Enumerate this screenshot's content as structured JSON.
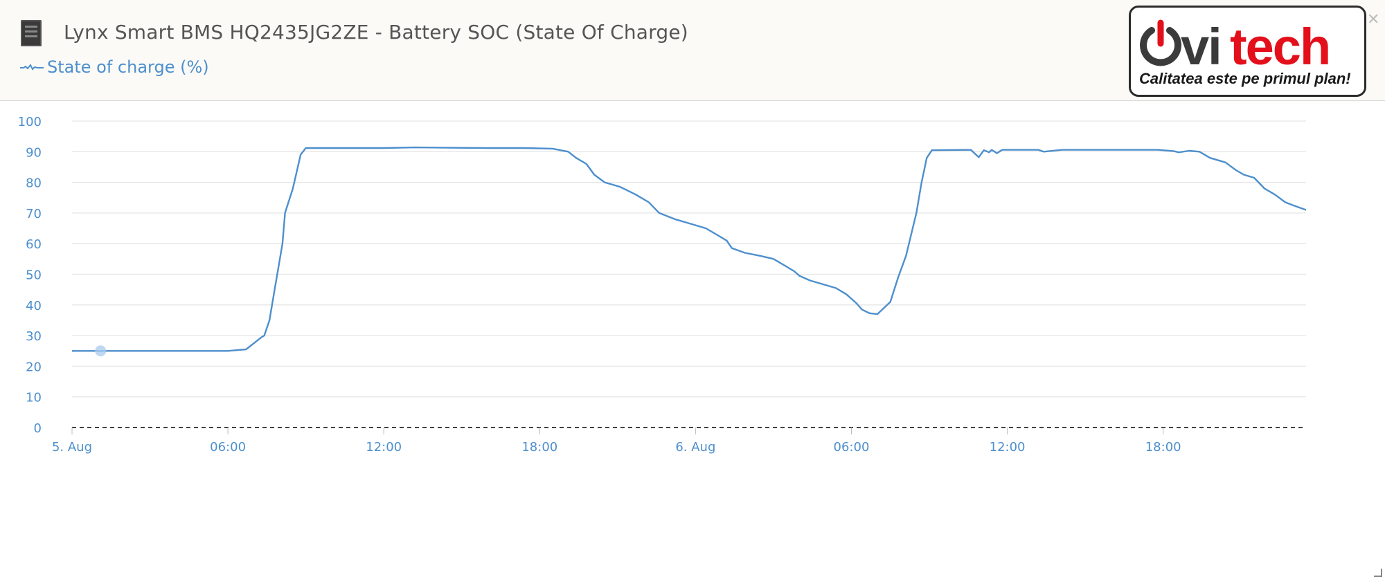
{
  "header": {
    "title": "Lynx Smart BMS HQ2435JG2ZE - Battery SOC (State Of Charge)",
    "device_icon": "battery-device-icon",
    "legend_label": "State of charge (%)",
    "legend_icon": "line-series-icon"
  },
  "logo": {
    "brand_dark": "ovi",
    "brand_red": "tech",
    "tagline": "Calitatea este pe primul plan!"
  },
  "colors": {
    "series": "#4d8fcd",
    "axis_text": "#4d8fcd",
    "grid": "#e6e6e6",
    "brand_red": "#e3101b",
    "brand_dark": "#3b3b3b"
  },
  "chart_data": {
    "type": "line",
    "title": "",
    "xlabel": "",
    "ylabel": "",
    "ylim": [
      0,
      100
    ],
    "yticks": [
      0,
      10,
      20,
      30,
      40,
      50,
      60,
      70,
      80,
      90,
      100
    ],
    "xlim": [
      "2024-08-05 00:00",
      "2024-08-06 23:30"
    ],
    "xticks": [
      {
        "t": "2024-08-05 00:00",
        "label": "5. Aug"
      },
      {
        "t": "2024-08-05 06:00",
        "label": "06:00"
      },
      {
        "t": "2024-08-05 12:00",
        "label": "12:00"
      },
      {
        "t": "2024-08-05 18:00",
        "label": "18:00"
      },
      {
        "t": "2024-08-06 00:00",
        "label": "6. Aug"
      },
      {
        "t": "2024-08-06 06:00",
        "label": "06:00"
      },
      {
        "t": "2024-08-06 12:00",
        "label": "12:00"
      },
      {
        "t": "2024-08-06 18:00",
        "label": "18:00"
      }
    ],
    "grid": true,
    "marker": {
      "t": "2024-08-05 01:06",
      "y": 25
    },
    "series": [
      {
        "name": "State of charge (%)",
        "points": [
          [
            "2024-08-05 00:00",
            25
          ],
          [
            "2024-08-05 06:00",
            25
          ],
          [
            "2024-08-05 06:42",
            25.5
          ],
          [
            "2024-08-05 07:18",
            29.5
          ],
          [
            "2024-08-05 07:24",
            30
          ],
          [
            "2024-08-05 07:36",
            35
          ],
          [
            "2024-08-05 07:48",
            45
          ],
          [
            "2024-08-05 08:06",
            60
          ],
          [
            "2024-08-05 08:12",
            70
          ],
          [
            "2024-08-05 08:30",
            78
          ],
          [
            "2024-08-05 08:48",
            89
          ],
          [
            "2024-08-05 09:00",
            91.2
          ],
          [
            "2024-08-05 12:00",
            91.2
          ],
          [
            "2024-08-05 13:12",
            91.4
          ],
          [
            "2024-08-05 16:00",
            91.2
          ],
          [
            "2024-08-05 17:24",
            91.2
          ],
          [
            "2024-08-05 18:30",
            91
          ],
          [
            "2024-08-05 19:06",
            90
          ],
          [
            "2024-08-05 19:24",
            88
          ],
          [
            "2024-08-05 19:48",
            86
          ],
          [
            "2024-08-05 20:06",
            82.5
          ],
          [
            "2024-08-05 20:30",
            80
          ],
          [
            "2024-08-05 21:06",
            78.5
          ],
          [
            "2024-08-05 21:42",
            76
          ],
          [
            "2024-08-05 22:12",
            73.5
          ],
          [
            "2024-08-05 22:36",
            70
          ],
          [
            "2024-08-05 23:12",
            68
          ],
          [
            "2024-08-05 23:48",
            66.5
          ],
          [
            "2024-08-06 00:24",
            65
          ],
          [
            "2024-08-06 00:48",
            63
          ],
          [
            "2024-08-06 01:12",
            61
          ],
          [
            "2024-08-06 01:24",
            58.5
          ],
          [
            "2024-08-06 01:54",
            57
          ],
          [
            "2024-08-06 02:30",
            56
          ],
          [
            "2024-08-06 03:00",
            55
          ],
          [
            "2024-08-06 03:30",
            52.5
          ],
          [
            "2024-08-06 03:48",
            51
          ],
          [
            "2024-08-06 04:00",
            49.5
          ],
          [
            "2024-08-06 04:24",
            48
          ],
          [
            "2024-08-06 05:00",
            46.5
          ],
          [
            "2024-08-06 05:24",
            45.5
          ],
          [
            "2024-08-06 05:48",
            43.5
          ],
          [
            "2024-08-06 06:00",
            42
          ],
          [
            "2024-08-06 06:12",
            40.5
          ],
          [
            "2024-08-06 06:24",
            38.5
          ],
          [
            "2024-08-06 06:42",
            37.3
          ],
          [
            "2024-08-06 07:00",
            37
          ],
          [
            "2024-08-06 07:30",
            41
          ],
          [
            "2024-08-06 07:48",
            49
          ],
          [
            "2024-08-06 08:06",
            56
          ],
          [
            "2024-08-06 08:30",
            70
          ],
          [
            "2024-08-06 08:42",
            80
          ],
          [
            "2024-08-06 08:54",
            88
          ],
          [
            "2024-08-06 09:06",
            90.5
          ],
          [
            "2024-08-06 10:36",
            90.6
          ],
          [
            "2024-08-06 10:54",
            88.2
          ],
          [
            "2024-08-06 11:06",
            90.5
          ],
          [
            "2024-08-06 11:18",
            89.8
          ],
          [
            "2024-08-06 11:24",
            90.6
          ],
          [
            "2024-08-06 11:36",
            89.5
          ],
          [
            "2024-08-06 11:48",
            90.6
          ],
          [
            "2024-08-06 13:12",
            90.6
          ],
          [
            "2024-08-06 13:24",
            90
          ],
          [
            "2024-08-06 14:06",
            90.6
          ],
          [
            "2024-08-06 17:48",
            90.6
          ],
          [
            "2024-08-06 18:24",
            90.2
          ],
          [
            "2024-08-06 18:36",
            89.8
          ],
          [
            "2024-08-06 19:00",
            90.3
          ],
          [
            "2024-08-06 19:24",
            90
          ],
          [
            "2024-08-06 19:48",
            88
          ],
          [
            "2024-08-06 20:24",
            86.5
          ],
          [
            "2024-08-06 20:48",
            84
          ],
          [
            "2024-08-06 21:06",
            82.5
          ],
          [
            "2024-08-06 21:30",
            81.5
          ],
          [
            "2024-08-06 21:54",
            78
          ],
          [
            "2024-08-06 22:18",
            76
          ],
          [
            "2024-08-06 22:42",
            73.5
          ],
          [
            "2024-08-06 23:00",
            72.5
          ],
          [
            "2024-08-06 23:30",
            71
          ]
        ]
      }
    ]
  }
}
